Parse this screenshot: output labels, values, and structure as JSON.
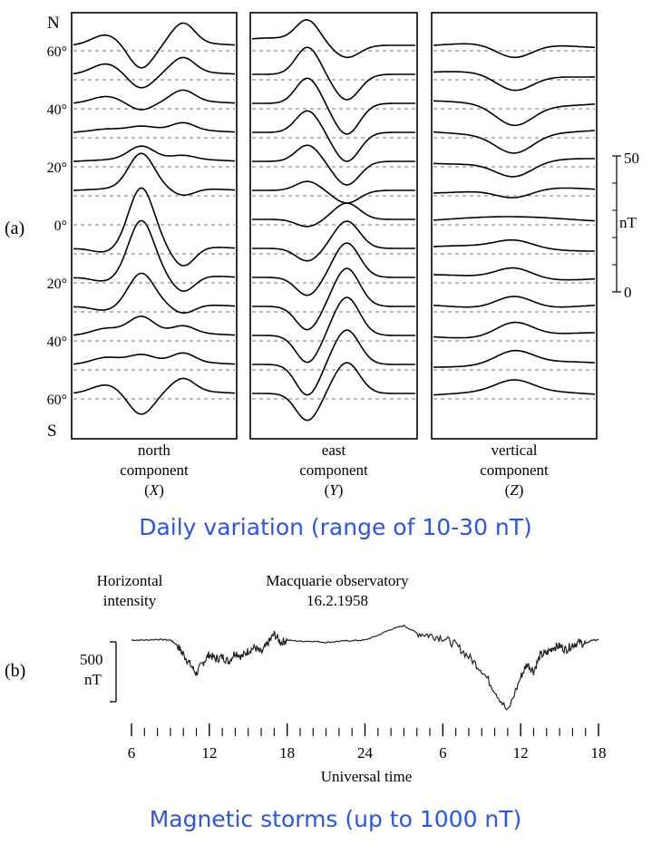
{
  "panel_a": {
    "label": "(a)",
    "lat_labels": [
      "60°",
      "40°",
      "20°",
      "0°",
      "20°",
      "40°",
      "60°"
    ],
    "north_label": "N",
    "south_label": "S",
    "caption": "Daily variation (range of 10-30 nT)",
    "scale": {
      "top": "50",
      "bottom": "0",
      "unit": "nT"
    },
    "components": [
      {
        "line1": "north",
        "line2": "component",
        "symbol": "X"
      },
      {
        "line1": "east",
        "line2": "component",
        "symbol": "Y"
      },
      {
        "line1": "vertical",
        "line2": "component",
        "symbol": "Z"
      }
    ]
  },
  "panel_b": {
    "label": "(b)",
    "title_left_1": "Horizontal",
    "title_left_2": "intensity",
    "title_right_1": "Macquarie observatory",
    "title_right_2": "16.2.1958",
    "scale_line1": "500",
    "scale_line2": "nT",
    "caption": "Magnetic storms (up to 1000 nT)"
  },
  "chart_data": [
    {
      "type": "line",
      "description_free": true,
      "series": [
        {
          "name": "north component (X)",
          "rows": 13
        },
        {
          "name": "east component (Y)",
          "rows": 13
        },
        {
          "name": "vertical component (Z)",
          "rows": 13
        }
      ],
      "y_ticks": [
        "60°",
        "40°",
        "20°",
        "0°",
        "20°",
        "40°",
        "60°"
      ],
      "ylabel_top": "N",
      "ylabel_bottom": "S"
    },
    {
      "type": "line",
      "xlabel": "Universal time",
      "x_ticks": [
        "6",
        "12",
        "18",
        "24",
        "6",
        "12",
        "18"
      ],
      "x_range_hours": [
        6,
        42
      ],
      "series": [
        {
          "name": "Horizontal intensity",
          "x": [
            6,
            7,
            8,
            9,
            9.5,
            10,
            10.5,
            11,
            11.5,
            12,
            12.5,
            13,
            13.5,
            14,
            14.5,
            15,
            15.5,
            16,
            16.5,
            17,
            17.5,
            18,
            19,
            20,
            21,
            22,
            23,
            24,
            25,
            26,
            27,
            28,
            29,
            30,
            31,
            32,
            33,
            34,
            35,
            36,
            36.5,
            37,
            37.5,
            38,
            38.5,
            39,
            39.5,
            40,
            40.5,
            41,
            41.5,
            42
          ],
          "y": [
            0,
            0,
            5,
            0,
            -40,
            -120,
            -200,
            -280,
            -190,
            -120,
            -160,
            -140,
            -180,
            -100,
            -140,
            -90,
            -60,
            -110,
            -30,
            50,
            -20,
            0,
            -10,
            -10,
            -20,
            -10,
            -5,
            0,
            40,
            90,
            120,
            60,
            40,
            20,
            -40,
            -140,
            -250,
            -420,
            -600,
            -310,
            -200,
            -260,
            -130,
            -110,
            -60,
            -50,
            -80,
            -40,
            -20,
            -30,
            0,
            0
          ]
        }
      ],
      "scale_bar": "500 nT"
    }
  ]
}
